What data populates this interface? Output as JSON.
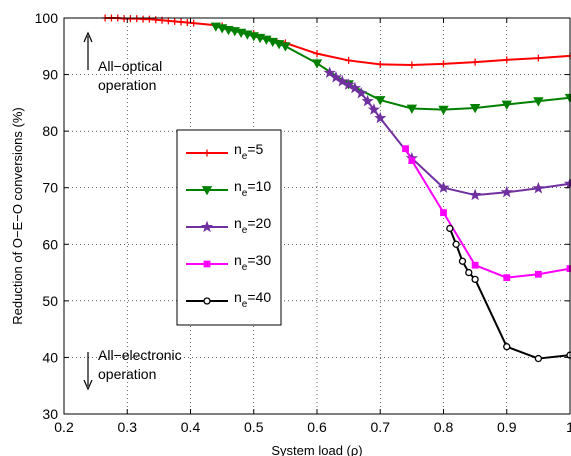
{
  "chart_data": {
    "type": "line",
    "xlabel": "System load (ρ)",
    "ylabel": "Reduction of O−E−O conversions (%)",
    "xlim": [
      0.2,
      1.0
    ],
    "ylim": [
      30,
      100
    ],
    "xticks": [
      "0.2",
      "0.3",
      "0.4",
      "0.5",
      "0.6",
      "0.7",
      "0.8",
      "0.9",
      "1"
    ],
    "yticks": [
      "30",
      "40",
      "50",
      "60",
      "70",
      "80",
      "90",
      "100"
    ],
    "grid": true,
    "legend_position": "center-left",
    "annotations": {
      "top": [
        "All−optical",
        "operation"
      ],
      "bottom": [
        "All−electronic",
        "operation"
      ]
    },
    "series": [
      {
        "label_base": "n",
        "label_sub": "e",
        "label_rest": "=5",
        "color": "#ff0000",
        "marker": "plus",
        "x": [
          0.265,
          0.275,
          0.285,
          0.295,
          0.305,
          0.315,
          0.325,
          0.335,
          0.345,
          0.355,
          0.365,
          0.375,
          0.385,
          0.395,
          0.405,
          0.45,
          0.5,
          0.55,
          0.6,
          0.65,
          0.7,
          0.75,
          0.8,
          0.85,
          0.9,
          0.95,
          1.0
        ],
        "y": [
          100,
          100,
          100,
          99.9,
          99.9,
          99.9,
          99.8,
          99.8,
          99.7,
          99.6,
          99.5,
          99.4,
          99.3,
          99.2,
          99.1,
          98.6,
          97.2,
          95.6,
          93.7,
          92.5,
          91.8,
          91.7,
          91.9,
          92.2,
          92.6,
          92.9,
          93.3
        ]
      },
      {
        "label_base": "n",
        "label_sub": "e",
        "label_rest": "=10",
        "color": "#008000",
        "marker": "triangle-down",
        "x": [
          0.44,
          0.45,
          0.46,
          0.47,
          0.48,
          0.49,
          0.5,
          0.51,
          0.52,
          0.53,
          0.54,
          0.55,
          0.6,
          0.65,
          0.7,
          0.75,
          0.8,
          0.85,
          0.9,
          0.95,
          1.0
        ],
        "y": [
          98.5,
          98.2,
          97.9,
          97.7,
          97.4,
          97.1,
          96.8,
          96.5,
          96.2,
          95.8,
          95.4,
          95.0,
          92.0,
          88.3,
          85.5,
          84.0,
          83.8,
          84.1,
          84.7,
          85.3,
          85.9
        ]
      },
      {
        "label_base": "n",
        "label_sub": "e",
        "label_rest": "=20",
        "color": "#7030a0",
        "marker": "star",
        "x": [
          0.62,
          0.63,
          0.64,
          0.65,
          0.66,
          0.67,
          0.68,
          0.69,
          0.7,
          0.75,
          0.8,
          0.85,
          0.9,
          0.95,
          1.0
        ],
        "y": [
          90.3,
          89.5,
          88.8,
          88.2,
          87.6,
          86.7,
          85.3,
          83.8,
          82.3,
          75.2,
          70.0,
          68.7,
          69.2,
          69.9,
          70.7
        ]
      },
      {
        "label_base": "n",
        "label_sub": "e",
        "label_rest": "=30",
        "color": "#ff00ff",
        "marker": "square",
        "x": [
          0.74,
          0.75,
          0.8,
          0.85,
          0.9,
          0.95,
          1.0
        ],
        "y": [
          76.9,
          74.8,
          65.6,
          56.3,
          54.1,
          54.7,
          55.7
        ]
      },
      {
        "label_base": "n",
        "label_sub": "e",
        "label_rest": "=40",
        "color": "#000000",
        "marker": "circle",
        "x": [
          0.81,
          0.82,
          0.83,
          0.84,
          0.85,
          0.9,
          0.95,
          1.0
        ],
        "y": [
          62.8,
          60.0,
          57.0,
          55.0,
          53.8,
          41.9,
          39.8,
          40.4
        ]
      }
    ]
  }
}
